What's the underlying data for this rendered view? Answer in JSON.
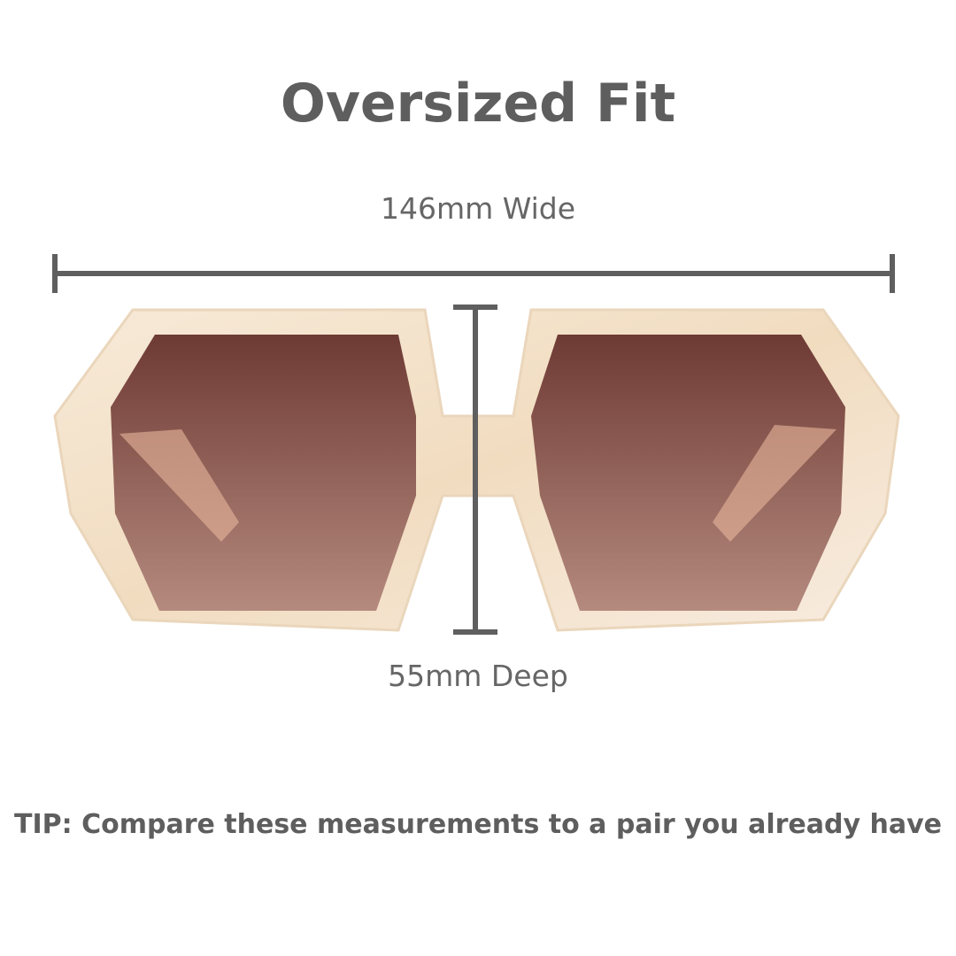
{
  "title": "Oversized Fit",
  "width_label": "146mm Wide",
  "depth_label": "55mm Deep",
  "tip": "TIP: Compare these measurements to a pair you already have",
  "colors": {
    "text": "#5e5e5e",
    "measure_line": "#5f5f5f",
    "frame": "#f3e2c9",
    "lens": "#7a4a40"
  },
  "product_image": "hexagonal-oversized-sunglasses"
}
